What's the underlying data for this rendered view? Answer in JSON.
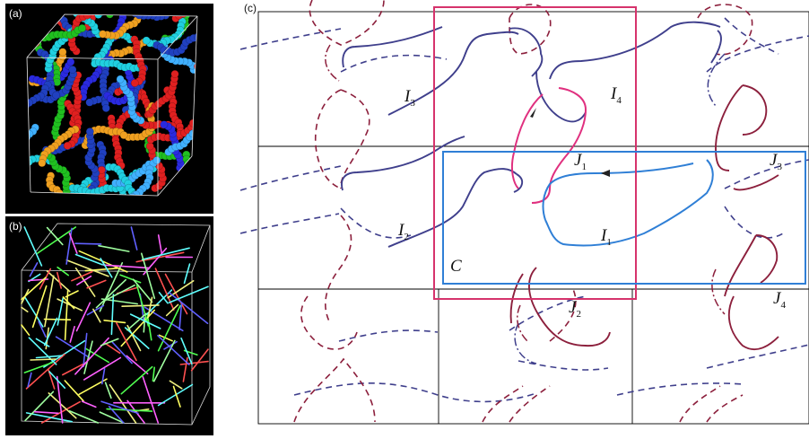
{
  "panels": {
    "a": {
      "label": "(a)"
    },
    "b": {
      "label": "(b)"
    },
    "c": {
      "label": "(c)"
    }
  },
  "diagram": {
    "labels": [
      {
        "letter": "I",
        "sub": "3"
      },
      {
        "letter": "I",
        "sub": "4"
      },
      {
        "letter": "J",
        "sub": "1"
      },
      {
        "letter": "J",
        "sub": "3"
      },
      {
        "letter": "I",
        "sub": "2"
      },
      {
        "letter": "I",
        "sub": "1"
      },
      {
        "letter": "C",
        "sub": ""
      },
      {
        "letter": "J",
        "sub": "2"
      },
      {
        "letter": "J",
        "sub": "4"
      }
    ]
  },
  "colors": {
    "blue_chain": "#3f3f8c",
    "red_chain": "#8c1f3c",
    "magenta_box": "#d6336c",
    "cyan_box": "#2f7fd6",
    "magenta_chain": "#e0307f",
    "grid": "#000000"
  }
}
